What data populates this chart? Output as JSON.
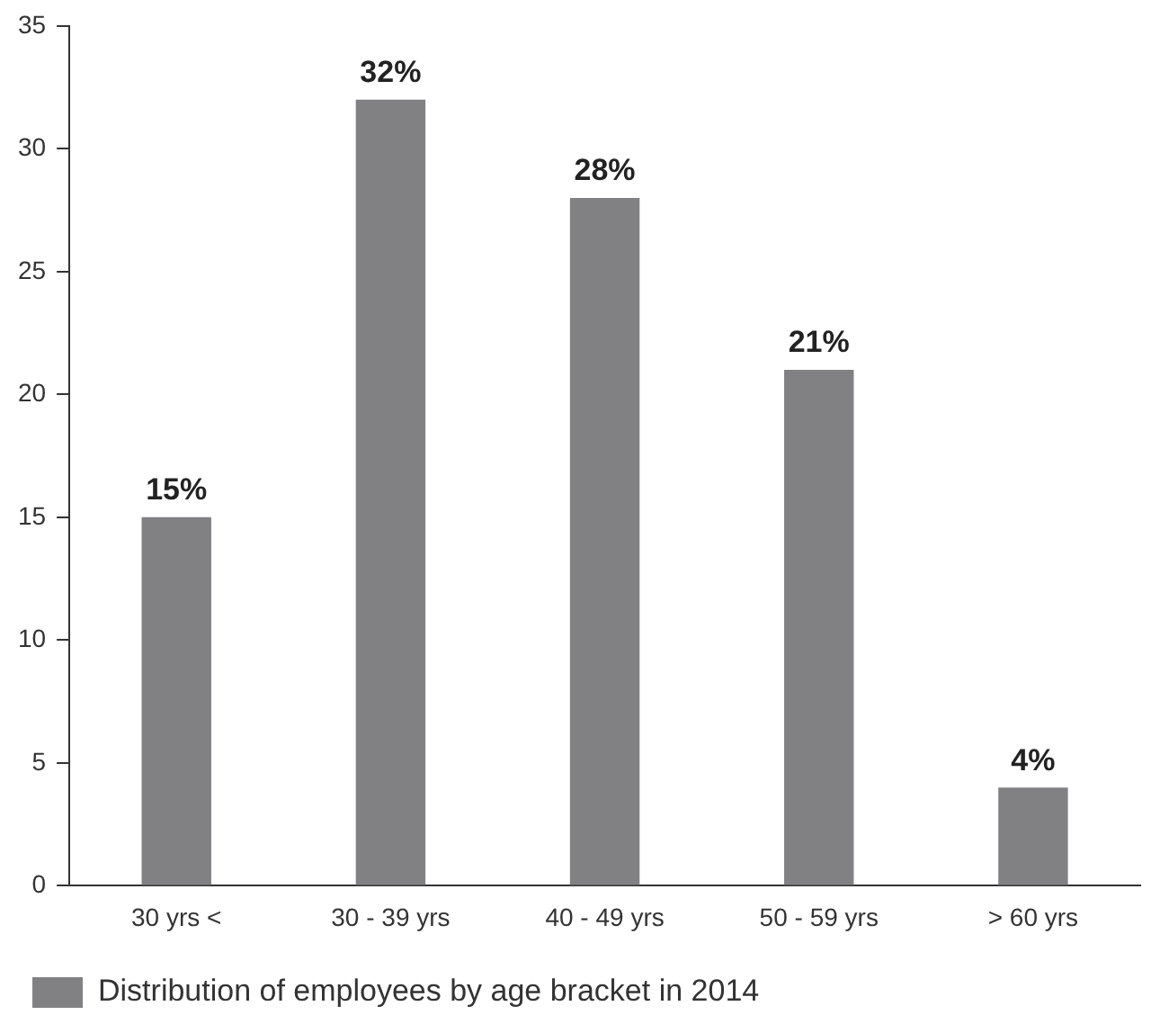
{
  "chart_data": {
    "type": "bar",
    "categories": [
      "30 yrs <",
      "30 - 39 yrs",
      "40 - 49 yrs",
      "50 - 59 yrs",
      "> 60 yrs"
    ],
    "series": [
      {
        "name": "Distribution of employees by age bracket in 2014",
        "color": "#818184",
        "values": [
          15,
          32,
          28,
          21,
          4
        ],
        "value_labels": [
          "15%",
          "32%",
          "28%",
          "21%",
          "4%"
        ]
      }
    ],
    "ylim": [
      0,
      35
    ],
    "yticks": [
      0,
      5,
      10,
      15,
      20,
      25,
      30,
      35
    ],
    "grid": false,
    "legend": "bottom"
  }
}
